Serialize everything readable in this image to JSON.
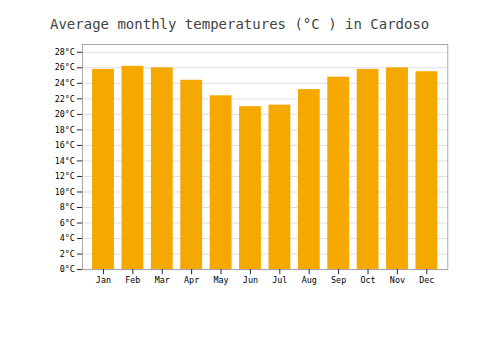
{
  "chart_data": {
    "type": "bar",
    "title": "Average monthly temperatures (°C ) in Cardoso",
    "categories": [
      "Jan",
      "Feb",
      "Mar",
      "Apr",
      "May",
      "Jun",
      "Jul",
      "Aug",
      "Sep",
      "Oct",
      "Nov",
      "Dec"
    ],
    "values": [
      25.8,
      26.2,
      26.0,
      24.4,
      22.4,
      21.0,
      21.2,
      23.2,
      24.8,
      25.8,
      26.0,
      25.5
    ],
    "color": "#F5A800",
    "ylim": [
      0,
      29
    ],
    "yticks": [
      {
        "value": 0,
        "label": "0°C"
      },
      {
        "value": 2,
        "label": "2°C"
      },
      {
        "value": 4,
        "label": "4°C"
      },
      {
        "value": 6,
        "label": "6°C"
      },
      {
        "value": 8,
        "label": "8°C"
      },
      {
        "value": 10,
        "label": "10°C"
      },
      {
        "value": 12,
        "label": "12°C"
      },
      {
        "value": 14,
        "label": "14°C"
      },
      {
        "value": 16,
        "label": "16°C"
      },
      {
        "value": 18,
        "label": "18°C"
      },
      {
        "value": 20,
        "label": "20°C"
      },
      {
        "value": 22,
        "label": "22°C"
      },
      {
        "value": 24,
        "label": "24°C"
      },
      {
        "value": 26,
        "label": "26°C"
      },
      {
        "value": 28,
        "label": "28°C"
      }
    ],
    "grid": true
  }
}
